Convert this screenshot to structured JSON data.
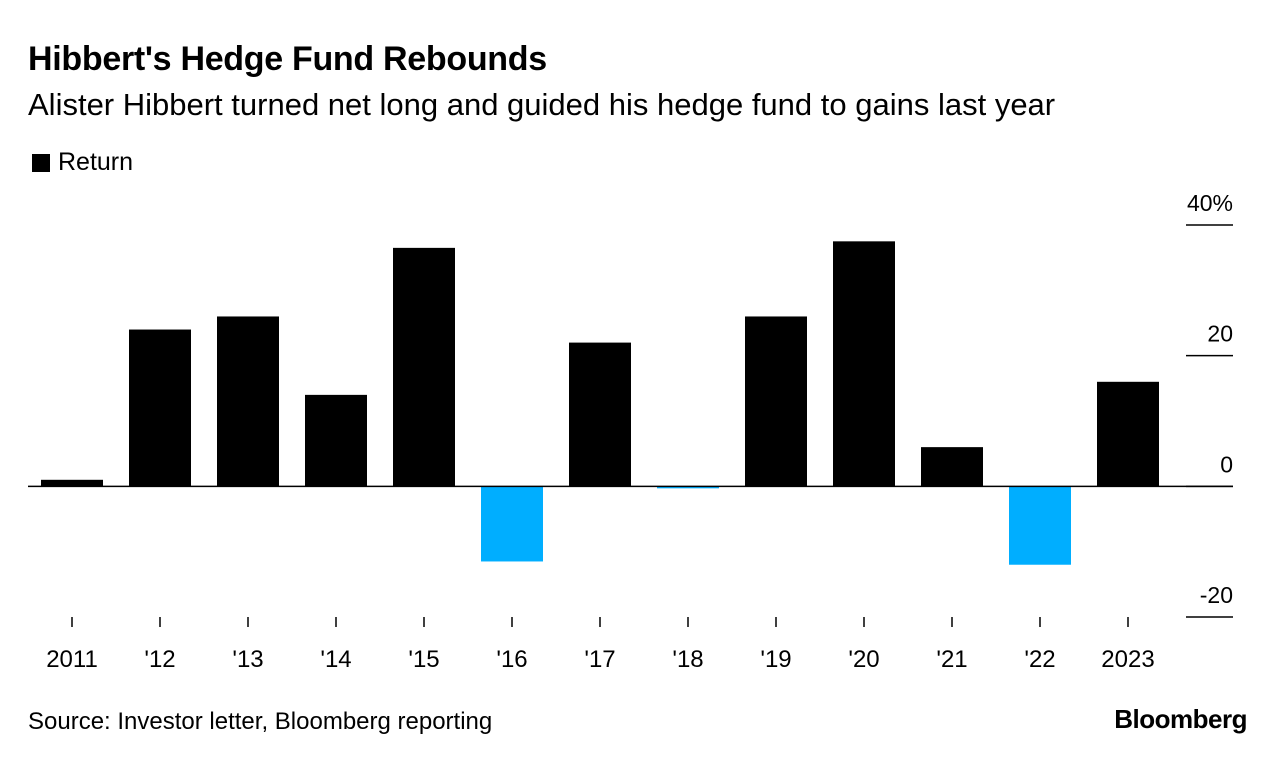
{
  "title": "Hibbert's Hedge Fund Rebounds",
  "subtitle": "Alister Hibbert turned net long and guided his hedge fund to gains last year",
  "legend": {
    "label": "Return"
  },
  "source": "Source: Investor letter, Bloomberg reporting",
  "brand": "Bloomberg",
  "colors": {
    "positive": "#000000",
    "negative": "#00aeff",
    "axis": "#000000"
  },
  "chart_data": {
    "type": "bar",
    "title": "Hibbert's Hedge Fund Rebounds",
    "subtitle": "Alister Hibbert turned net long and guided his hedge fund to gains last year",
    "xlabel": "",
    "ylabel": "",
    "categories": [
      "2011",
      "'12",
      "'13",
      "'14",
      "'15",
      "'16",
      "'17",
      "'18",
      "'19",
      "'20",
      "'21",
      "'22",
      "2023"
    ],
    "series": [
      {
        "name": "Return",
        "values": [
          1.0,
          24.0,
          26.0,
          14.0,
          36.5,
          -11.5,
          22.0,
          -0.3,
          26.0,
          37.5,
          6.0,
          -12.0,
          16.0
        ]
      }
    ],
    "ylim": [
      -20,
      40
    ],
    "yticks": [
      -20,
      0,
      20,
      40
    ],
    "ytick_labels": [
      "-20",
      "0",
      "20",
      "40%"
    ],
    "legend_position": "top-left",
    "grid": false
  }
}
